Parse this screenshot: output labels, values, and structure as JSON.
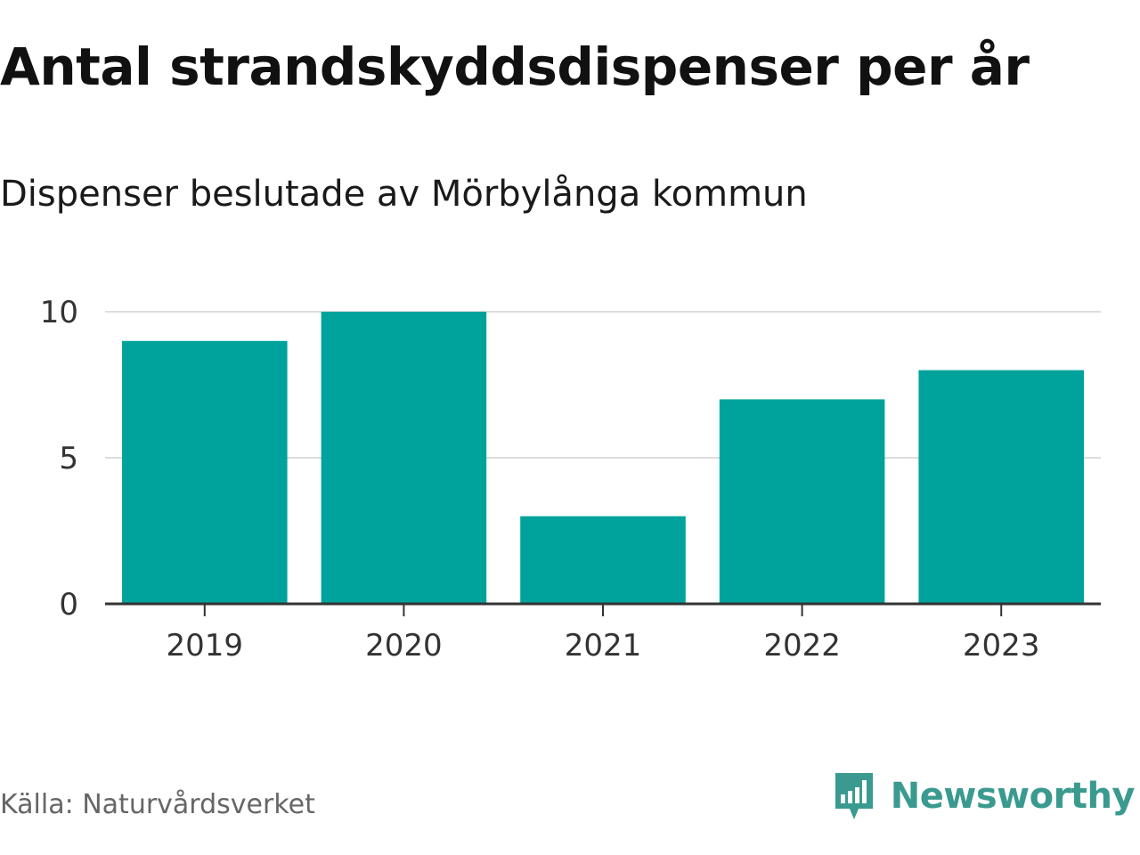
{
  "header": {
    "title": "Antal strandskyddsdispenser per år",
    "subtitle": "Dispenser beslutade av Mörbylånga kommun"
  },
  "footer": {
    "source": "Källa: Naturvårdsverket",
    "brand": "Newsworthy",
    "brand_icon": "chart-speech-bubble-icon",
    "brand_color": "#3a9a8f"
  },
  "chart_data": {
    "type": "bar",
    "title": "Antal strandskyddsdispenser per år",
    "subtitle": "Dispenser beslutade av Mörbylånga kommun",
    "categories": [
      "2019",
      "2020",
      "2021",
      "2022",
      "2023"
    ],
    "values": [
      9,
      10,
      3,
      7,
      8
    ],
    "xlabel": "",
    "ylabel": "",
    "ylim": [
      0,
      10
    ],
    "yticks": [
      0,
      5,
      10
    ],
    "grid": true,
    "bar_color": "#00a39b",
    "grid_color": "#dddddd",
    "axis_color": "#333333"
  }
}
